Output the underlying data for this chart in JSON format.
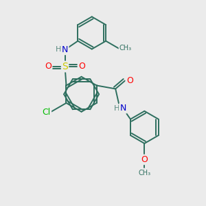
{
  "background_color": "#ebebeb",
  "bond_color": "#2d6e5e",
  "atom_colors": {
    "N": "#0000cc",
    "O": "#ff0000",
    "S": "#cccc00",
    "Cl": "#00bb00",
    "C": "#2d6e5e",
    "H": "#5a8a80"
  },
  "figsize": [
    3.0,
    3.0
  ],
  "dpi": 100
}
